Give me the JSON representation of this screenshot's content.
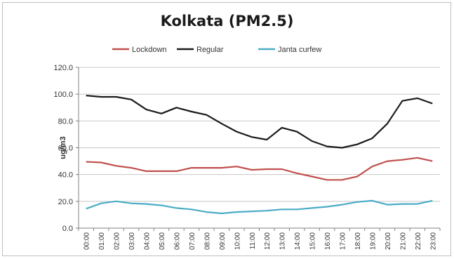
{
  "chart_data": {
    "type": "line",
    "title": "Kolkata (PM2.5)",
    "xlabel": "",
    "ylabel": "ug/m3",
    "ylim": [
      0,
      120
    ],
    "yticks": [
      "0.0",
      "20.0",
      "40.0",
      "60.0",
      "80.0",
      "100.0",
      "120.0"
    ],
    "grid": true,
    "legend_position": "top",
    "x": [
      "00:00",
      "01:00",
      "02:00",
      "03:00",
      "04:00",
      "05:00",
      "06:00",
      "07:00",
      "08:00",
      "09:00",
      "10:00",
      "11:00",
      "12:00",
      "13:00",
      "14:00",
      "15:00",
      "16:00",
      "17:00",
      "18:00",
      "19:00",
      "20:00",
      "21:00",
      "22:00",
      "23:00"
    ],
    "series": [
      {
        "name": "Lockdown",
        "color": "#c0504d",
        "values": [
          49.5,
          49,
          46.5,
          45,
          42.5,
          42.5,
          42.5,
          45,
          45,
          45,
          46,
          43.5,
          44,
          44,
          41,
          38.5,
          36,
          36,
          38.5,
          46,
          50,
          51,
          52.5,
          50
        ]
      },
      {
        "name": "Regular",
        "color": "#1a1a1a",
        "values": [
          99,
          98,
          98,
          96,
          88.5,
          85.5,
          90,
          87,
          84.5,
          78,
          72,
          68,
          66,
          75,
          72,
          65,
          61,
          60,
          62.5,
          67,
          78,
          95,
          97,
          93
        ]
      },
      {
        "name": "Janta curfew",
        "color": "#4bacc6",
        "values": [
          14.5,
          18.5,
          20,
          18.5,
          18,
          17,
          15,
          14,
          12,
          11,
          12,
          12.5,
          13,
          14,
          14,
          15,
          16,
          17.5,
          19.5,
          20.5,
          17.5,
          18,
          18,
          20.5
        ]
      }
    ]
  }
}
